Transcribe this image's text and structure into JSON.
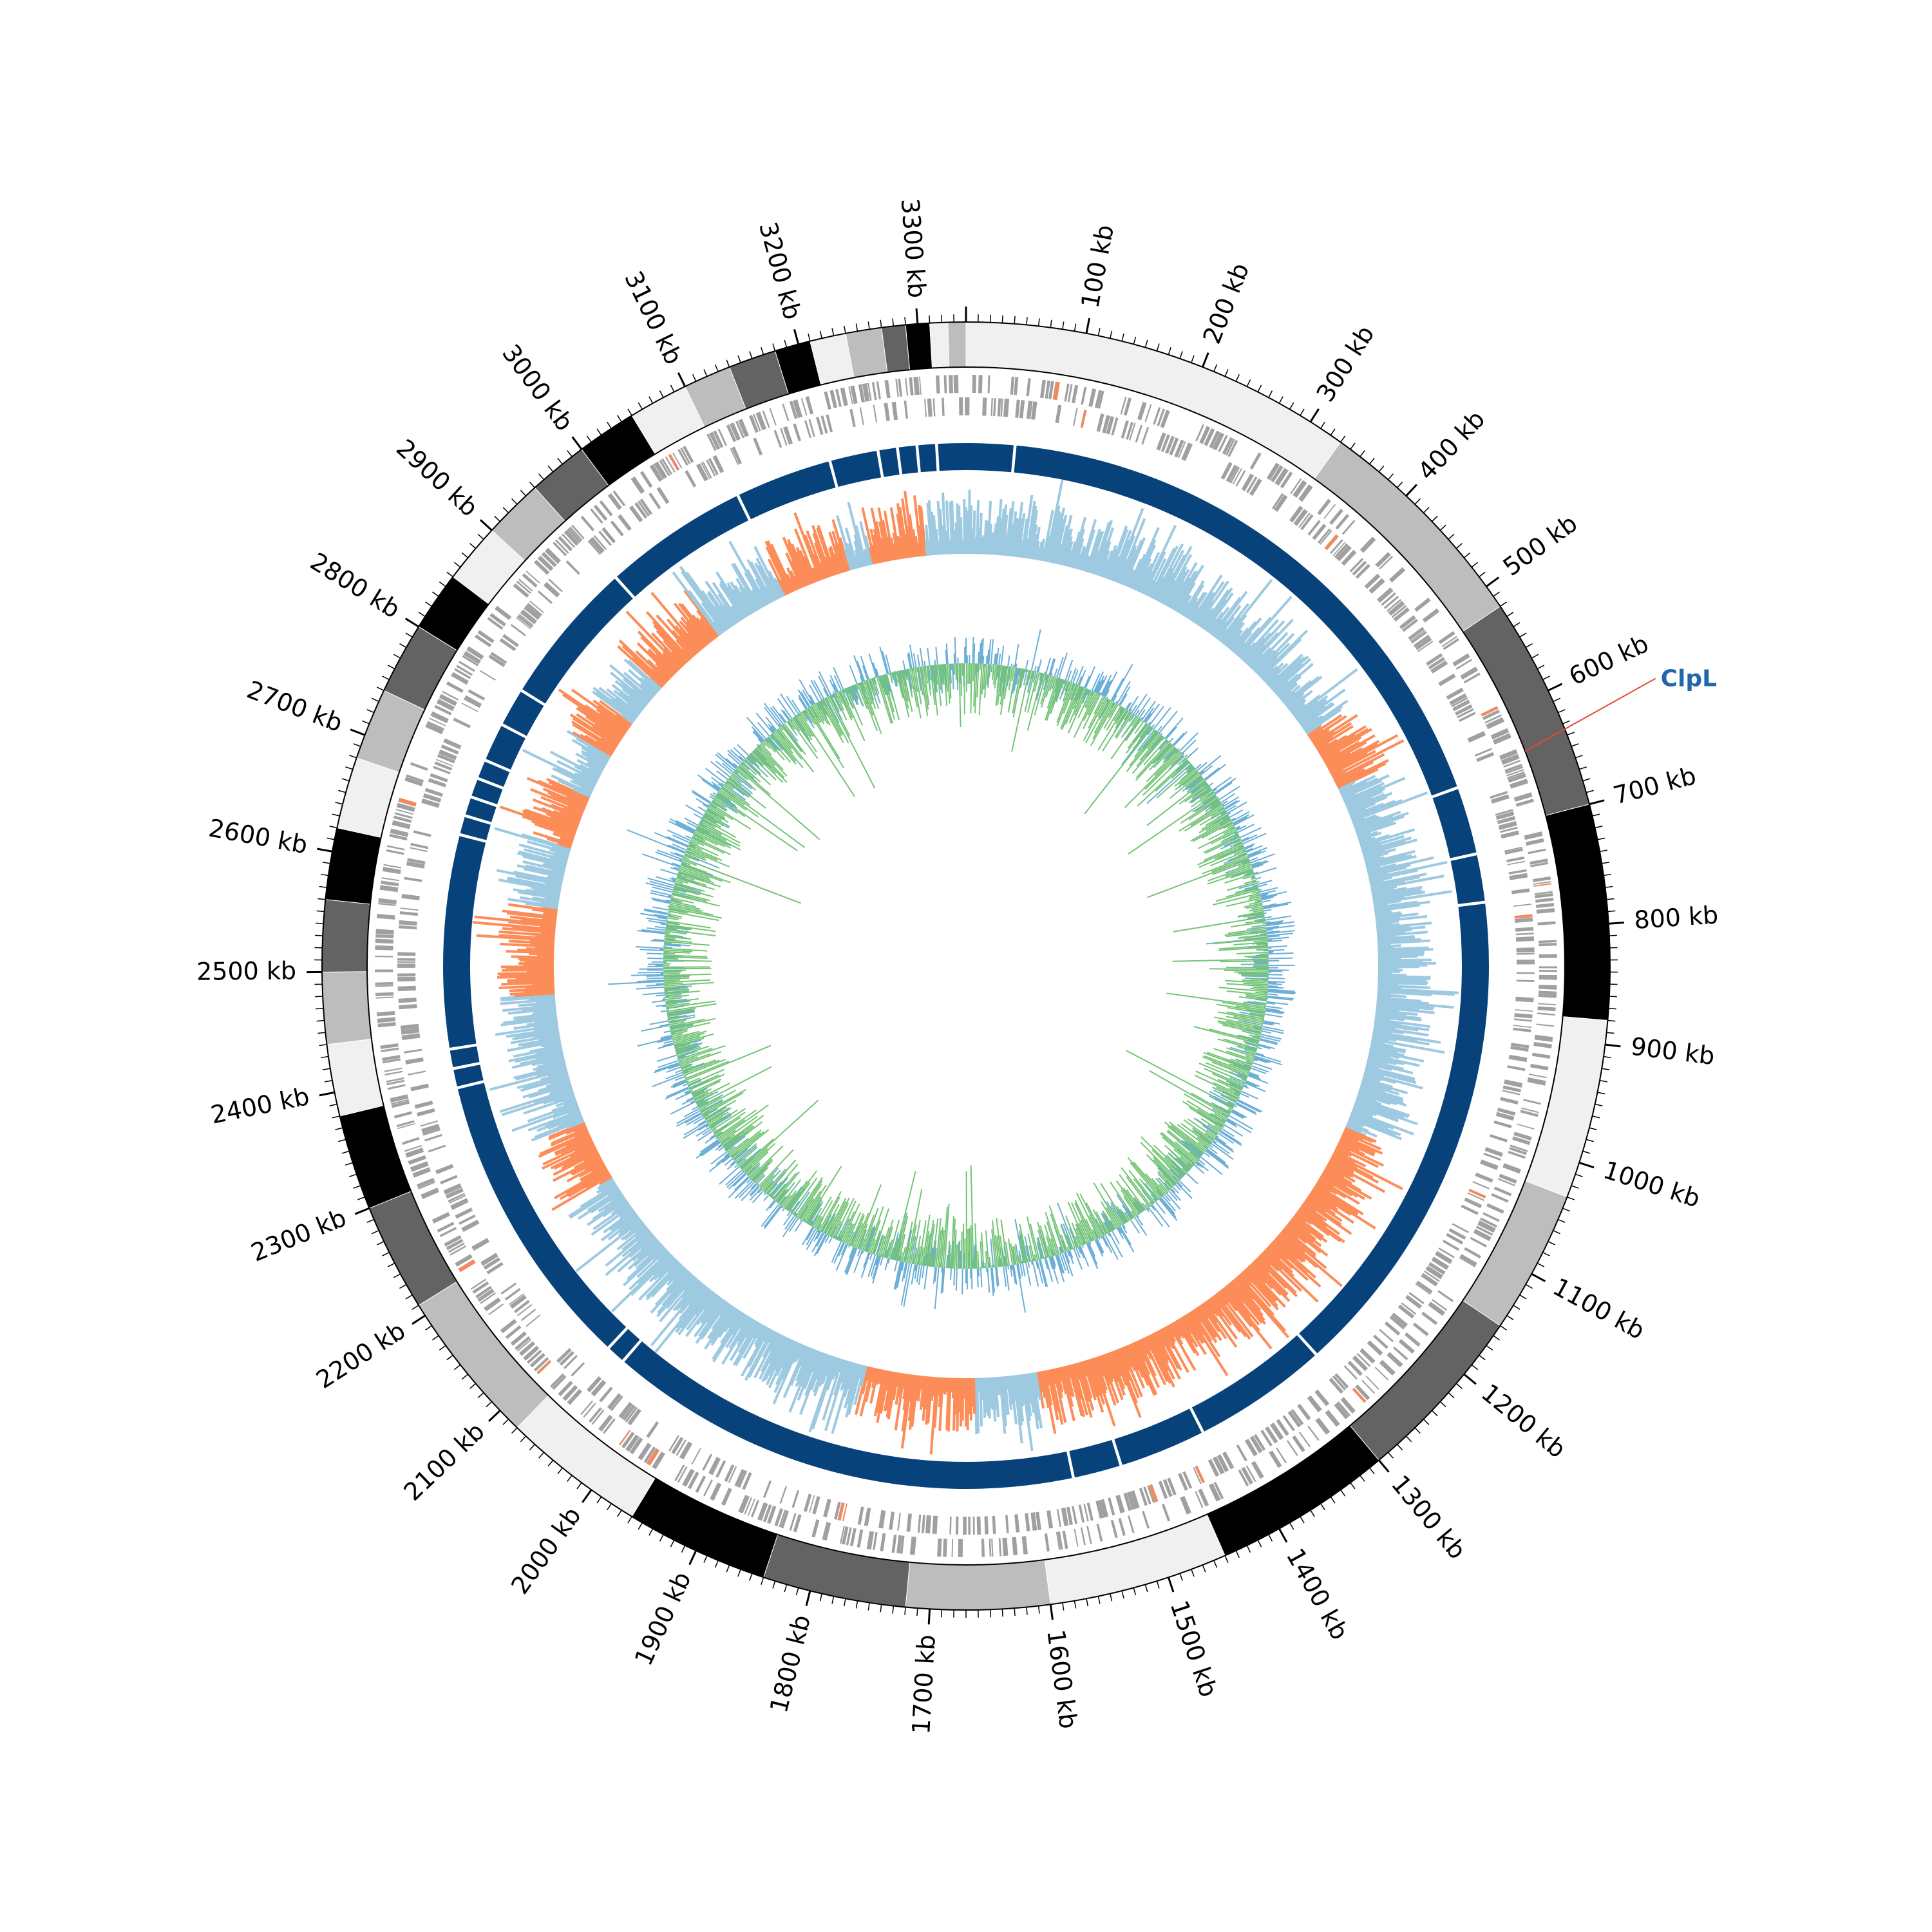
{
  "genome": {
    "length_kb": 3340,
    "unit": "kb",
    "tick_labels": [
      "100 kb",
      "200 kb",
      "300 kb",
      "400 kb",
      "500 kb",
      "600 kb",
      "700 kb",
      "800 kb",
      "900 kb",
      "1000 kb",
      "1100 kb",
      "1200 kb",
      "1300 kb",
      "1400 kb",
      "1500 kb",
      "1600 kb",
      "1700 kb",
      "1800 kb",
      "1900 kb",
      "2000 kb",
      "2100 kb",
      "2200 kb",
      "2300 kb",
      "2400 kb",
      "2500 kb",
      "2600 kb",
      "2700 kb",
      "2800 kb",
      "2900 kb",
      "3000 kb",
      "3100 kb",
      "3200 kb",
      "3300 kb"
    ]
  },
  "annotation": {
    "gene": "ClpL",
    "position_kb": 640,
    "label_color": "#2166ac",
    "line_color": "#e34a33"
  },
  "colors": {
    "ideogram": [
      "#f0f0f0",
      "#bdbdbd",
      "#636363",
      "#000000"
    ],
    "contigs": "#08427b",
    "genes": "#a0a0a0",
    "genes_highlight": "#ef8a62",
    "gc_skew_positive": "#9ecae1",
    "gc_skew_negative": "#fc8d59",
    "gc_content_a": "#6baed6",
    "gc_content_b": "#74c476"
  },
  "tracks": [
    {
      "name": "ideogram",
      "kind": "alternating gray bands"
    },
    {
      "name": "genes",
      "kind": "feature blocks, both strands"
    },
    {
      "name": "contigs",
      "kind": "dark blue blocks with gaps"
    },
    {
      "name": "skew",
      "kind": "histogram, blue/orange"
    },
    {
      "name": "content",
      "kind": "inner line plot, blue/green"
    }
  ],
  "chart_data": {
    "type": "circular genome map",
    "x_range_kb": [
      0,
      3340
    ],
    "ideogram_segments_kb": [
      [
        0,
        330
      ],
      [
        330,
        520
      ],
      [
        520,
        700
      ],
      [
        700,
        880
      ],
      [
        880,
        1030
      ],
      [
        1030,
        1150
      ],
      [
        1150,
        1300
      ],
      [
        1300,
        1450
      ],
      [
        1450,
        1600
      ],
      [
        1600,
        1720
      ],
      [
        1720,
        1840
      ],
      [
        1840,
        1960
      ],
      [
        1960,
        2080
      ],
      [
        2080,
        2210
      ],
      [
        2210,
        2300
      ],
      [
        2300,
        2380
      ],
      [
        2380,
        2440
      ],
      [
        2440,
        2500
      ],
      [
        2500,
        2560
      ],
      [
        2560,
        2620
      ],
      [
        2620,
        2680
      ],
      [
        2680,
        2740
      ],
      [
        2740,
        2800
      ],
      [
        2800,
        2850
      ],
      [
        2850,
        2900
      ],
      [
        2900,
        2950
      ],
      [
        2950,
        3000
      ],
      [
        3000,
        3050
      ],
      [
        3050,
        3100
      ],
      [
        3100,
        3140
      ],
      [
        3140,
        3180
      ],
      [
        3180,
        3210
      ],
      [
        3210,
        3240
      ],
      [
        3240,
        3270
      ],
      [
        3270,
        3290
      ],
      [
        3290,
        3310
      ],
      [
        3310,
        3325
      ],
      [
        3325,
        3340
      ]
    ],
    "contig_gaps_kb": [
      50,
      650,
      720,
      770,
      1280,
      1420,
      1510,
      1560,
      2050,
      2070,
      2380,
      2400,
      2420,
      2640,
      2660,
      2680,
      2700,
      2720,
      2760,
      2800,
      2950,
      3100,
      3200,
      3250,
      3270,
      3290,
      3310
    ]
  }
}
